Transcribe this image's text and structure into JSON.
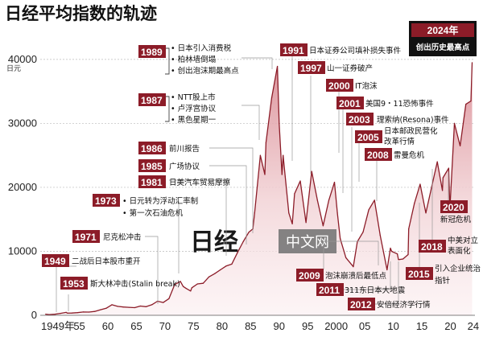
{
  "chart_data": {
    "type": "area",
    "title": "日经平均指数的轨迹",
    "ylabel": "日元",
    "ylim": [
      0,
      42000
    ],
    "xlim": [
      1949.3,
      2024.6
    ],
    "y_ticks": [
      "40000",
      "30000",
      "20000",
      "10000",
      "0"
    ],
    "x_ticks": [
      "1949年",
      "55",
      "60",
      "65",
      "70",
      "75",
      "80",
      "85",
      "90",
      "95",
      "2000",
      "05",
      "10",
      "15",
      "20",
      "24"
    ],
    "grid": "horizontal dashed",
    "series": [
      {
        "color": "#8c1c28",
        "fill": "gradient-light-red",
        "points": [
          [
            1949.4,
            176
          ],
          [
            1950,
            110
          ],
          [
            1951,
            160
          ],
          [
            1952,
            300
          ],
          [
            1953,
            450
          ],
          [
            1953.2,
            340
          ],
          [
            1954,
            350
          ],
          [
            1955,
            420
          ],
          [
            1956,
            520
          ],
          [
            1957,
            500
          ],
          [
            1958,
            600
          ],
          [
            1959,
            870
          ],
          [
            1960,
            1100
          ],
          [
            1961,
            1650
          ],
          [
            1962,
            1400
          ],
          [
            1963,
            1300
          ],
          [
            1964,
            1250
          ],
          [
            1965,
            1200
          ],
          [
            1966,
            1450
          ],
          [
            1967,
            1350
          ],
          [
            1968,
            1650
          ],
          [
            1969,
            2200
          ],
          [
            1970,
            2000
          ],
          [
            1971,
            2600
          ],
          [
            1972,
            4800
          ],
          [
            1973,
            5300
          ],
          [
            1973.5,
            4500
          ],
          [
            1974,
            4200
          ],
          [
            1974.8,
            3800
          ],
          [
            1975,
            4300
          ],
          [
            1976,
            4900
          ],
          [
            1977,
            5000
          ],
          [
            1978,
            6000
          ],
          [
            1979,
            6500
          ],
          [
            1980,
            7100
          ],
          [
            1981,
            7700
          ],
          [
            1982,
            8000
          ],
          [
            1983,
            9800
          ],
          [
            1984,
            11500
          ],
          [
            1985,
            13000
          ],
          [
            1985.7,
            13500
          ],
          [
            1986,
            16000
          ],
          [
            1987,
            25000
          ],
          [
            1987.8,
            22000
          ],
          [
            1988,
            27000
          ],
          [
            1989,
            34000
          ],
          [
            1989.99,
            38915
          ],
          [
            1990.3,
            30000
          ],
          [
            1990.8,
            22000
          ],
          [
            1991,
            25000
          ],
          [
            1992,
            16000
          ],
          [
            1992.6,
            14300
          ],
          [
            1993,
            19000
          ],
          [
            1994,
            21000
          ],
          [
            1995,
            14500
          ],
          [
            1996,
            22500
          ],
          [
            1997,
            18000
          ],
          [
            1998,
            14000
          ],
          [
            1999,
            18000
          ],
          [
            2000,
            20800
          ],
          [
            2000.5,
            16000
          ],
          [
            2001,
            12000
          ],
          [
            2002,
            9000
          ],
          [
            2003.3,
            7600
          ],
          [
            2004,
            11500
          ],
          [
            2005,
            13000
          ],
          [
            2006,
            16500
          ],
          [
            2007,
            18000
          ],
          [
            2008,
            12500
          ],
          [
            2009.2,
            7100
          ],
          [
            2009.8,
            10500
          ],
          [
            2010,
            10000
          ],
          [
            2011,
            9600
          ],
          [
            2011.2,
            8700
          ],
          [
            2012,
            8800
          ],
          [
            2012.9,
            9500
          ],
          [
            2013,
            13500
          ],
          [
            2014,
            17500
          ],
          [
            2015,
            20500
          ],
          [
            2016,
            16000
          ],
          [
            2017,
            20000
          ],
          [
            2018,
            24000
          ],
          [
            2018.9,
            19500
          ],
          [
            2019,
            21500
          ],
          [
            2020,
            23000
          ],
          [
            2020.2,
            16500
          ],
          [
            2021,
            30000
          ],
          [
            2022,
            26500
          ],
          [
            2023,
            33000
          ],
          [
            2023.9,
            33500
          ],
          [
            2024.1,
            39500
          ]
        ]
      }
    ],
    "annotations": [
      {
        "year": "1949",
        "text": "二战后日本股市重开"
      },
      {
        "year": "1953",
        "text": "斯大林冲击(Stalin break)"
      },
      {
        "year": "1971",
        "text": "尼克松冲击"
      },
      {
        "year": "1973",
        "lines": [
          "• 日元转为浮动汇率制",
          "• 第一次石油危机"
        ]
      },
      {
        "year": "1981",
        "text": "日美汽车贸易摩擦"
      },
      {
        "year": "1985",
        "text": "广场协议"
      },
      {
        "year": "1986",
        "text": "前川报告"
      },
      {
        "year": "1987",
        "lines": [
          "• NTT股上市",
          "• 卢浮宫协议",
          "• 黑色星期一"
        ]
      },
      {
        "year": "1989",
        "lines": [
          "• 日本引入消费税",
          "• 柏林墙倒塌",
          "• 创出泡沫期最高点"
        ]
      },
      {
        "year": "1991",
        "text": "日本证券公司填补损失事件"
      },
      {
        "year": "1997",
        "text": "山一证券破产"
      },
      {
        "year": "2000",
        "text": "IT泡沫"
      },
      {
        "year": "2001",
        "text": "美国9・11恐怖事件"
      },
      {
        "year": "2003",
        "text": "理索纳(Resona)事件"
      },
      {
        "year": "2005",
        "lines": [
          "日本邮政民营化",
          "改革行情"
        ]
      },
      {
        "year": "2008",
        "text": "雷曼危机"
      },
      {
        "year": "2009",
        "text": "泡沫崩溃后最低点"
      },
      {
        "year": "2011",
        "text": "311东日本大地震"
      },
      {
        "year": "2012",
        "text": "安倍经济学行情"
      },
      {
        "year": "2015",
        "lines": [
          "引入企业统治",
          "指针"
        ]
      },
      {
        "year": "2018",
        "lines": [
          "中美对立",
          "表面化"
        ]
      },
      {
        "year": "2020",
        "text": "新冠危机"
      }
    ],
    "highlight": {
      "year": "2024年",
      "text": "创出历史最高点"
    },
    "watermark": {
      "logo": "日经",
      "text": "中文网"
    }
  }
}
